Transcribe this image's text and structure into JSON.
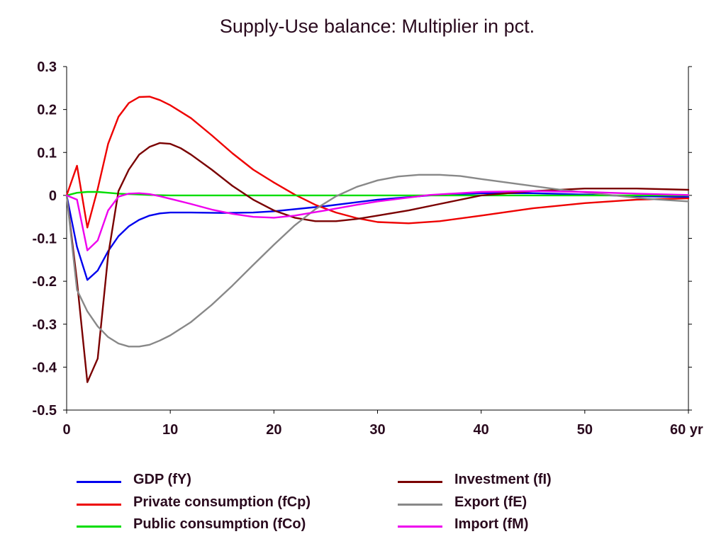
{
  "chart_data": {
    "type": "line",
    "title": "Supply-Use balance: Multiplier in pct.",
    "xlabel": "",
    "ylabel": "",
    "xlim": [
      0,
      60
    ],
    "ylim": [
      -0.5,
      0.3
    ],
    "x_ticks": [
      0,
      10,
      20,
      30,
      40,
      50,
      60
    ],
    "x_tick_labels": [
      "0",
      "10",
      "20",
      "30",
      "40",
      "50",
      "60 yr"
    ],
    "y_ticks": [
      0.3,
      0.2,
      0.1,
      0,
      -0.1,
      -0.2,
      -0.3,
      -0.4,
      -0.5
    ],
    "y_tick_labels": [
      "0.3",
      "0.2",
      "0.1",
      "0",
      "-0.1",
      "-0.2",
      "-0.3",
      "-0.4",
      "-0.5"
    ],
    "grid": false,
    "legend_position": "bottom",
    "series": [
      {
        "name": "GDP (fY)",
        "color": "#0000ee",
        "x": [
          0,
          1,
          2,
          3,
          4,
          5,
          6,
          7,
          8,
          9,
          10,
          12,
          15,
          18,
          20,
          25,
          30,
          35,
          40,
          45,
          50,
          55,
          60
        ],
        "y": [
          0,
          -0.12,
          -0.197,
          -0.175,
          -0.13,
          -0.095,
          -0.072,
          -0.057,
          -0.047,
          -0.042,
          -0.04,
          -0.04,
          -0.041,
          -0.04,
          -0.037,
          -0.025,
          -0.01,
          0,
          0.005,
          0.005,
          0.002,
          -0.002,
          -0.004
        ]
      },
      {
        "name": "Private consumption (fCp)",
        "color": "#ee0000",
        "x": [
          0,
          1,
          2,
          3,
          4,
          5,
          6,
          7,
          8,
          9,
          10,
          12,
          14,
          16,
          18,
          20,
          22,
          24,
          26,
          28,
          30,
          33,
          36,
          40,
          45,
          50,
          55,
          60
        ],
        "y": [
          0,
          0.069,
          -0.075,
          0.015,
          0.12,
          0.183,
          0.215,
          0.229,
          0.23,
          0.222,
          0.21,
          0.18,
          0.14,
          0.098,
          0.06,
          0.03,
          0.002,
          -0.022,
          -0.04,
          -0.053,
          -0.062,
          -0.065,
          -0.06,
          -0.047,
          -0.03,
          -0.018,
          -0.01,
          -0.007
        ]
      },
      {
        "name": "Public consumption (fCo)",
        "color": "#00dd00",
        "x": [
          0,
          1,
          2,
          3,
          4,
          5,
          6,
          8,
          10,
          20,
          30,
          40,
          50,
          60
        ],
        "y": [
          0,
          0.006,
          0.008,
          0.008,
          0.006,
          0.004,
          0.003,
          0.001,
          0,
          0,
          0,
          0,
          0,
          0
        ]
      },
      {
        "name": "Investment (fI)",
        "color": "#7a0000",
        "x": [
          0,
          1,
          2,
          3,
          4,
          5,
          6,
          7,
          8,
          9,
          10,
          11,
          12,
          14,
          16,
          18,
          20,
          22,
          24,
          26,
          28,
          30,
          33,
          36,
          40,
          45,
          50,
          55,
          60
        ],
        "y": [
          0,
          -0.2,
          -0.435,
          -0.38,
          -0.14,
          0.01,
          0.06,
          0.095,
          0.113,
          0.122,
          0.12,
          0.11,
          0.095,
          0.06,
          0.022,
          -0.01,
          -0.035,
          -0.052,
          -0.06,
          -0.06,
          -0.055,
          -0.047,
          -0.035,
          -0.02,
          0,
          0.01,
          0.016,
          0.016,
          0.013
        ]
      },
      {
        "name": "Export (fE)",
        "color": "#888888",
        "x": [
          0,
          1,
          2,
          3,
          4,
          5,
          6,
          7,
          8,
          9,
          10,
          12,
          14,
          16,
          18,
          20,
          22,
          24,
          26,
          28,
          30,
          32,
          34,
          36,
          38,
          40,
          44,
          48,
          52,
          56,
          60
        ],
        "y": [
          0,
          -0.22,
          -0.27,
          -0.305,
          -0.33,
          -0.345,
          -0.352,
          -0.352,
          -0.348,
          -0.338,
          -0.326,
          -0.295,
          -0.255,
          -0.21,
          -0.162,
          -0.115,
          -0.07,
          -0.032,
          -0.002,
          0.02,
          0.035,
          0.044,
          0.048,
          0.048,
          0.045,
          0.038,
          0.025,
          0.012,
          0.002,
          -0.008,
          -0.014
        ]
      },
      {
        "name": "Import (fM)",
        "color": "#ee00ee",
        "x": [
          0,
          1,
          2,
          3,
          4,
          5,
          6,
          7,
          8,
          9,
          10,
          12,
          14,
          16,
          18,
          20,
          22,
          25,
          28,
          30,
          35,
          40,
          45,
          50,
          55,
          60
        ],
        "y": [
          0,
          -0.01,
          -0.128,
          -0.105,
          -0.035,
          -0.003,
          0.004,
          0.005,
          0.003,
          -0.002,
          -0.008,
          -0.02,
          -0.033,
          -0.043,
          -0.05,
          -0.052,
          -0.047,
          -0.035,
          -0.022,
          -0.014,
          0.001,
          0.008,
          0.01,
          0.008,
          0.004,
          0.001
        ]
      }
    ]
  }
}
